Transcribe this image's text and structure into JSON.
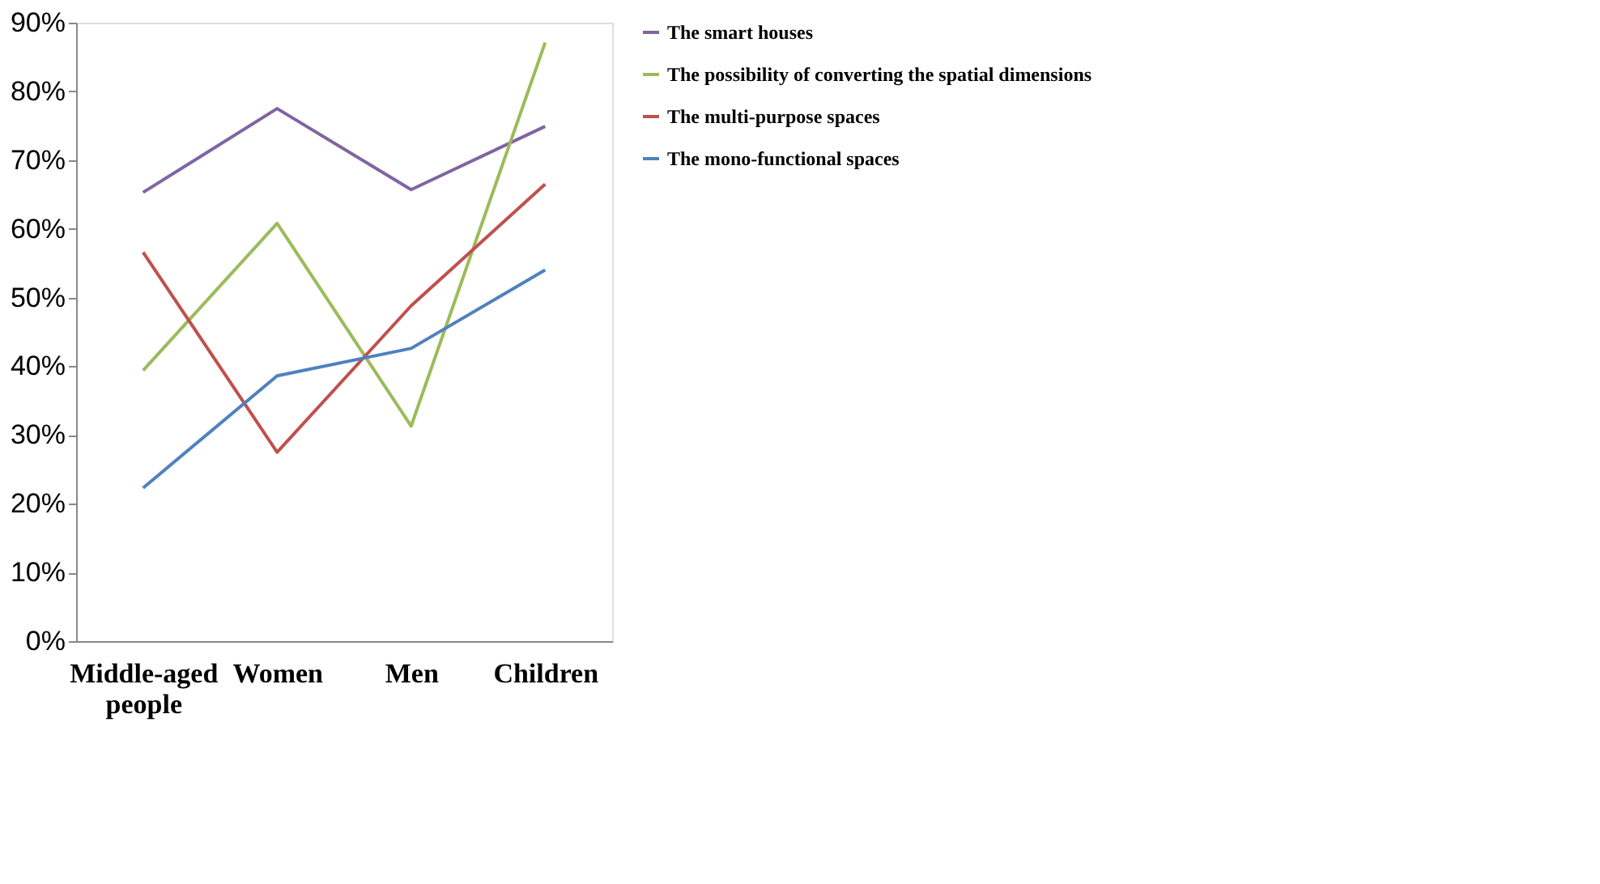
{
  "chart_data": {
    "type": "line",
    "categories": [
      "Middle-aged people",
      "Women",
      "Men",
      "Children"
    ],
    "series": [
      {
        "name": "The smart houses",
        "color": "#8064a2",
        "values": [
          65.3,
          77.5,
          65.7,
          74.9
        ]
      },
      {
        "name": "The possibility of converting the spatial dimensions",
        "color": "#9bbb59",
        "values": [
          39.4,
          60.8,
          31.3,
          87.1
        ]
      },
      {
        "name": "The multi-purpose spaces",
        "color": "#c0504d",
        "values": [
          56.6,
          27.5,
          48.8,
          66.5
        ]
      },
      {
        "name": "The mono-functional spaces",
        "color": "#4f81bd",
        "values": [
          22.3,
          38.6,
          42.6,
          54.0
        ]
      }
    ],
    "ylim": [
      0,
      90
    ],
    "yticks": [
      {
        "value": 0,
        "label": "0%"
      },
      {
        "value": 10,
        "label": "10%"
      },
      {
        "value": 20,
        "label": "20%"
      },
      {
        "value": 30,
        "label": "30%"
      },
      {
        "value": 40,
        "label": "40%"
      },
      {
        "value": 50,
        "label": "50%"
      },
      {
        "value": 60,
        "label": "60%"
      },
      {
        "value": 70,
        "label": "70%"
      },
      {
        "value": 80,
        "label": "80%"
      },
      {
        "value": 90,
        "label": "90%"
      }
    ],
    "grid": false,
    "legend": "right",
    "marker": "none",
    "line_style": "solid"
  }
}
